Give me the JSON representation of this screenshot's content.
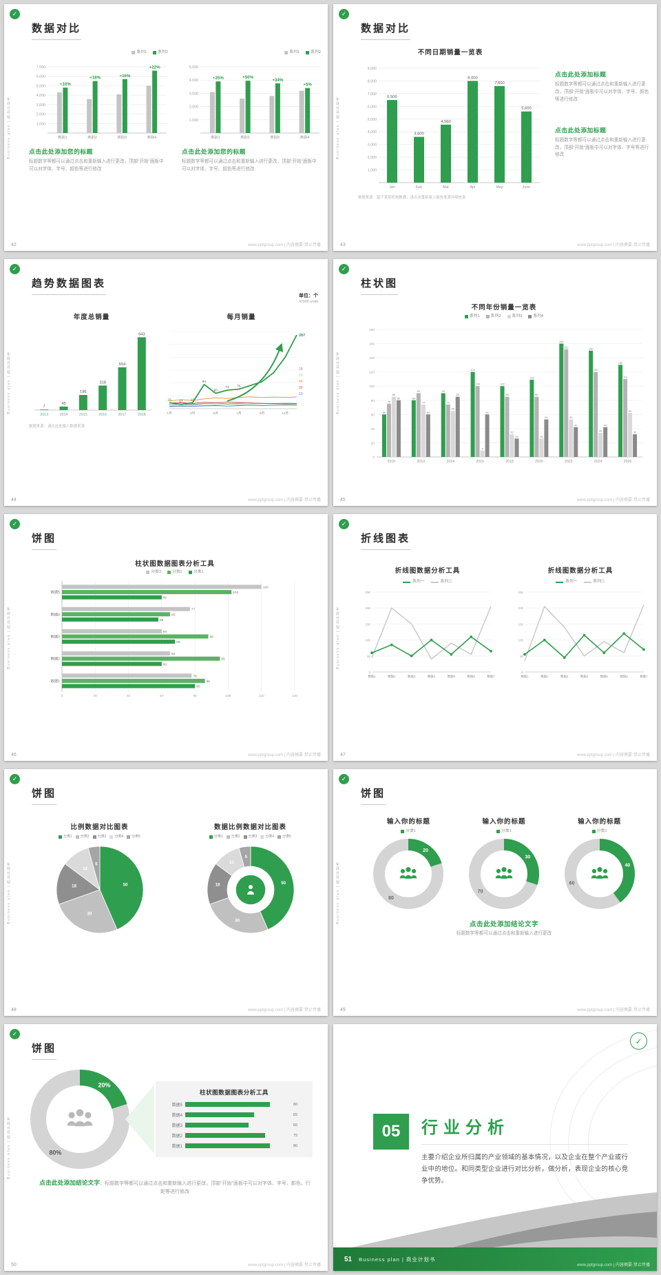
{
  "palette": {
    "green": "#2f9e4e",
    "green_dark": "#1f7a38",
    "green_mid": "#5cb263",
    "green_light": "#9ccf9e",
    "green_pale": "#eaf5ec",
    "gray_bar": "#c4c4c4",
    "gray_mid": "#b3b3b3",
    "gray_light": "#d8d8d8",
    "gray_dark": "#8a8a8a",
    "orange": "#e0903a",
    "red": "#c0504d",
    "blue": "#4f81bd"
  },
  "common": {
    "sidebar_text": "Business plan | 商业计划书",
    "footer_text": "www.pptgroup.com | 内容摘要·禁止传播",
    "logo_check": "✓"
  },
  "slides": [
    {
      "page": "42",
      "title": "数据对比",
      "layout": "dual-grouped-bar",
      "charts": [
        {
          "legend": [
            "系列1",
            "系列2"
          ],
          "y_ticks": [
            "7,000",
            "6,000",
            "5,000",
            "4,000",
            "3,000",
            "2,000",
            "1,000"
          ],
          "y_max": 7000,
          "categories": [
            "类别1",
            "类别2",
            "类别3",
            "类别4"
          ],
          "series1": [
            4300,
            3600,
            4100,
            5000
          ],
          "series2": [
            4800,
            5500,
            5700,
            6600
          ],
          "pct_labels": [
            "+10%",
            "+18%",
            "+16%",
            "+22%"
          ],
          "heading": "点击此处添加您的标题",
          "body": "标题数字等都可以通过点击和重新输入进行更改，顶部“开始”面板中可以对字体、字号、颜色等进行修改"
        },
        {
          "legend": [
            "系列1",
            "系列2"
          ],
          "y_ticks": [
            "5,000",
            "4,000",
            "3,000",
            "2,000",
            "1,000"
          ],
          "y_max": 5000,
          "categories": [
            "类别1",
            "类别2",
            "类别3",
            "类别4"
          ],
          "series1": [
            3100,
            2600,
            2800,
            3200
          ],
          "series2": [
            3900,
            3950,
            3750,
            3400
          ],
          "pct_labels": [
            "+25%",
            "+50%",
            "+34%",
            "+5%"
          ],
          "heading": "点击此处添加您的标题",
          "body": "标题数字等都可以通过点击和重新输入进行更改，顶部“开始”面板中可以对字体、字号、颜色等进行修改"
        }
      ]
    },
    {
      "page": "43",
      "title": "数据对比",
      "layout": "column-with-text",
      "chart": {
        "title": "不同日期销量一览表",
        "y_ticks": [
          "9,000",
          "8,000",
          "7,000",
          "6,000",
          "5,000",
          "4,000",
          "3,000",
          "2,000",
          "1,000"
        ],
        "y_max": 9000,
        "categories": [
          "Jan",
          "Feb",
          "Mar",
          "Apr",
          "May",
          "June"
        ],
        "values": [
          6500,
          3600,
          4560,
          8000,
          7600,
          5600
        ],
        "value_labels": [
          "6,500",
          "3,600",
          "4,560",
          "8,000",
          "7,600",
          "5,600"
        ]
      },
      "note": "数据来源：基于某某机构数据，请点击重新录入报告来源详细信息",
      "text_blocks": [
        {
          "heading": "点击此处添加标题",
          "body": "标题数字等都可以通过点击和重新输入进行更改，顶部“开始”面板中可以对字体、字号、颜色等进行修改"
        },
        {
          "heading": "点击此处添加标题",
          "body": "标题数字等都可以通过点击和重新输入进行更改，顶部“开始”面板中可以对字体、字号等进行修改"
        }
      ]
    },
    {
      "page": "44",
      "title": "趋势数据图表",
      "layout": "trend",
      "unit_label": "单位：个",
      "unit_sub": "in'000 units",
      "bar_chart": {
        "title": "年度总销量",
        "categories": [
          "2013",
          "2014",
          "2015",
          "2016",
          "2017",
          "2018"
        ],
        "values": [
          7,
          45,
          196,
          318,
          554,
          943
        ]
      },
      "line_chart": {
        "title": "每月销量",
        "x_labels": [
          "1月",
          "3月",
          "5月",
          "7月",
          "9月",
          "11月"
        ],
        "main_series": [
          23,
          17,
          23,
          94,
          60,
          72,
          76,
          90,
          105,
          140,
          200,
          287
        ],
        "main_labels": [
          "23",
          "17",
          "23",
          "94",
          "60",
          "72",
          "76",
          "",
          "",
          "",
          "",
          ""
        ],
        "end_label": "287",
        "minor_series": [
          {
            "end_label": "18",
            "color": "#8a8a8a",
            "values": [
              15,
              18,
              16,
              20,
              22,
              19,
              21,
              23,
              20,
              19,
              18,
              18
            ]
          },
          {
            "end_label": "20",
            "color": "#9ccf9e",
            "values": [
              10,
              12,
              14,
              13,
              15,
              17,
              16,
              18,
              19,
              20,
              21,
              20
            ]
          },
          {
            "end_label": "45",
            "color": "#e0903a",
            "values": [
              30,
              35,
              32,
              38,
              42,
              40,
              44,
              46,
              43,
              45,
              44,
              45
            ]
          },
          {
            "end_label": "20",
            "color": "#c0504d",
            "values": [
              22,
              24,
              20,
              25,
              23,
              26,
              24,
              22,
              21,
              20,
              21,
              20
            ]
          },
          {
            "end_label": "13",
            "color": "#4f81bd",
            "values": [
              8,
              10,
              9,
              11,
              12,
              10,
              12,
              13,
              12,
              13,
              14,
              13
            ]
          }
        ]
      },
      "note": "数据来源：请在此处输入数据来源"
    },
    {
      "page": "45",
      "title": "柱状图",
      "layout": "multi-column",
      "chart": {
        "title": "不同年份销量一览表",
        "y_max": 180,
        "y_step": 20,
        "categories": [
          "2010",
          "2012",
          "2014",
          "2016",
          "2018",
          "2020",
          "2022",
          "2024",
          "2026"
        ],
        "series": [
          {
            "name": "系列1",
            "color": "#2f9e4e",
            "values": [
              60,
              80,
              90,
              120,
              100,
              109,
              160,
              150,
              130
            ]
          },
          {
            "name": "系列2",
            "color": "#b3b3b3",
            "values": [
              75,
              90,
              74,
              100,
              85,
              85,
              152,
              120,
              110
            ]
          },
          {
            "name": "系列3",
            "color": "#d8d8d8",
            "values": [
              85,
              74,
              65,
              9,
              32,
              26,
              53,
              34,
              62
            ]
          },
          {
            "name": "系列4",
            "color": "#8a8a8a",
            "values": [
              80,
              60,
              85,
              60,
              26,
              53,
              42,
              42,
              32
            ]
          }
        ]
      }
    },
    {
      "page": "46",
      "title": "饼图",
      "layout": "hbar",
      "chart": {
        "title": "柱状图数据图表分析工具",
        "x_max": 140,
        "x_step": 20,
        "categories": [
          "数据5",
          "数据4",
          "数据3",
          "数据2",
          "数据1"
        ],
        "series": [
          {
            "name": "分类3",
            "color": "#c4c4c4",
            "values": [
              120,
              77,
              60,
              65,
              78
            ]
          },
          {
            "name": "分类2",
            "color": "#5cb263",
            "values": [
              102,
              65,
              88,
              95,
              86
            ]
          },
          {
            "name": "分类1",
            "color": "#2f9e4e",
            "values": [
              60,
              58,
              68,
              60,
              80
            ]
          }
        ]
      }
    },
    {
      "page": "47",
      "title": "折线图表",
      "layout": "dual-line",
      "charts": [
        {
          "title": "折线图数据分析工具",
          "legend": [
            "系列一",
            "系列二"
          ],
          "y_max": 250,
          "y_step": 50,
          "x_labels": [
            "数据1",
            "数据2",
            "数据3",
            "数据4",
            "数据5",
            "数据6",
            "数据7"
          ],
          "series1": [
            60,
            85,
            50,
            100,
            55,
            110,
            65
          ],
          "series2": [
            45,
            200,
            150,
            40,
            90,
            55,
            205
          ]
        },
        {
          "title": "折线图数据分析工具",
          "legend": [
            "系列一",
            "系列二"
          ],
          "y_max": 250,
          "y_step": 50,
          "x_labels": [
            "数据1",
            "数据2",
            "数据3",
            "数据4",
            "数据5",
            "数据6",
            "数据7"
          ],
          "series1": [
            55,
            100,
            45,
            115,
            60,
            120,
            70
          ],
          "series2": [
            35,
            205,
            140,
            50,
            95,
            60,
            210
          ]
        }
      ]
    },
    {
      "page": "48",
      "title": "饼图",
      "layout": "dual-pie",
      "pie_colors": [
        "#2f9e4e",
        "#c0c0c0",
        "#8f8f8f",
        "#dadada",
        "#a5a5a5"
      ],
      "pies": [
        {
          "title": "比例数据对比图表",
          "legend": [
            "分类1",
            "分类2",
            "分类3",
            "分类4",
            "分类5"
          ],
          "values": [
            50,
            30,
            18,
            12,
            5
          ],
          "donut": false
        },
        {
          "title": "数据比例数据对比图表",
          "legend": [
            "分类1",
            "分类2",
            "分类3",
            "分类4",
            "分类5"
          ],
          "values": [
            50,
            30,
            18,
            12,
            5
          ],
          "donut": true
        }
      ]
    },
    {
      "page": "49",
      "title": "饼图",
      "layout": "triple-donut",
      "donuts": [
        {
          "heading": "输入你的标题",
          "legend": "分类1",
          "green": 20,
          "gray": 80,
          "green_label": "20",
          "gray_label": "80"
        },
        {
          "heading": "输入你的标题",
          "legend": "分类1",
          "green": 30,
          "gray": 70,
          "green_label": "30",
          "gray_label": "70"
        },
        {
          "heading": "输入你的标题",
          "legend": "分类1",
          "green": 40,
          "gray": 60,
          "green_label": "40",
          "gray_label": "60"
        }
      ],
      "conclusion_heading": "点击此处添加结论文字",
      "conclusion_body": "标题数字等都可以通过点击和重新输入进行更改"
    },
    {
      "page": "50",
      "title": "饼图",
      "layout": "donut-panel",
      "donut": {
        "green": 20,
        "gray": 80,
        "green_label": "20%",
        "gray_label": "80%"
      },
      "panel": {
        "title": "柱状图数据图表分析工具",
        "max": 100,
        "categories": [
          "数据5",
          "数据4",
          "数据3",
          "数据2",
          "数据1"
        ],
        "values": [
          80,
          65,
          60,
          75,
          80
        ]
      },
      "conclusion_heading": "点击此处添加结论文字",
      "conclusion_body": "，标题数字等都可以通过点击和重新输入进行更改，顶部“开始”面板中可以对字体、字号、颜色、行距等进行修改"
    },
    {
      "page": "51",
      "layout": "divider",
      "number": "05",
      "title": "行业分析",
      "body": "主要介绍企业所归属的产业领域的基本情况，以及企业在整个产业或行业中的地位。和同类型企业进行对比分析，做分析，表现企业的核心竞争优势。",
      "footer_text": "Business plan | 商业计划书"
    }
  ]
}
